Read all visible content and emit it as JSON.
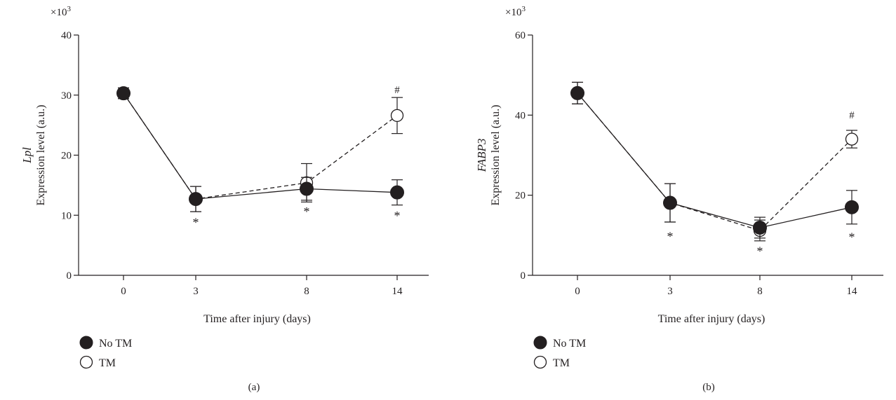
{
  "chart_data": [
    {
      "type": "line",
      "panel_label": "(a)",
      "scale_label": "×10",
      "scale_exp": "3",
      "ylabel_gene": "Lpl",
      "ylabel": "Expression level (a.u.)",
      "xlabel": "Time after injury (days)",
      "x_categories": [
        "0",
        "3",
        "8",
        "14"
      ],
      "yticks": [
        0,
        10,
        20,
        30,
        40
      ],
      "ylim": [
        0,
        40
      ],
      "series": [
        {
          "name": "No TM",
          "marker": "filled-circle",
          "line_style": "solid",
          "values": [
            30.3,
            12.7,
            14.4,
            13.8
          ],
          "errors": [
            0.9,
            2.1,
            1.9,
            2.1
          ]
        },
        {
          "name": "TM",
          "marker": "open-circle",
          "line_style": "dashed",
          "values": [
            30.3,
            12.7,
            15.4,
            26.6
          ],
          "errors": [
            0.9,
            2.1,
            3.2,
            3.0
          ]
        }
      ],
      "annotations": [
        {
          "x_index": 1,
          "text": "*",
          "y": 8.8
        },
        {
          "x_index": 2,
          "text": "*",
          "y": 10.6
        },
        {
          "x_index": 3,
          "text": "*",
          "y": 9.9
        },
        {
          "x_index": 3,
          "text": "#",
          "y": 31.0
        }
      ]
    },
    {
      "type": "line",
      "panel_label": "(b)",
      "scale_label": "×10",
      "scale_exp": "3",
      "ylabel_gene": "FABP3",
      "ylabel": "Expression level (a.u.)",
      "xlabel": "Time after injury (days)",
      "x_categories": [
        "0",
        "3",
        "8",
        "14"
      ],
      "yticks": [
        0,
        20,
        40,
        60
      ],
      "ylim": [
        0,
        60
      ],
      "series": [
        {
          "name": "No TM",
          "marker": "filled-circle",
          "line_style": "solid",
          "values": [
            45.5,
            18.1,
            11.9,
            17.0
          ],
          "errors": [
            2.7,
            4.8,
            2.6,
            4.2
          ]
        },
        {
          "name": "TM",
          "marker": "open-circle",
          "line_style": "dashed",
          "values": [
            45.5,
            18.1,
            11.2,
            34.0
          ],
          "errors": [
            2.7,
            4.8,
            2.6,
            2.2
          ]
        }
      ],
      "annotations": [
        {
          "x_index": 1,
          "text": "*",
          "y": 9.7
        },
        {
          "x_index": 2,
          "text": "*",
          "y": 6.0
        },
        {
          "x_index": 3,
          "text": "*",
          "y": 9.5
        },
        {
          "x_index": 3,
          "text": "#",
          "y": 40.2
        }
      ]
    }
  ]
}
